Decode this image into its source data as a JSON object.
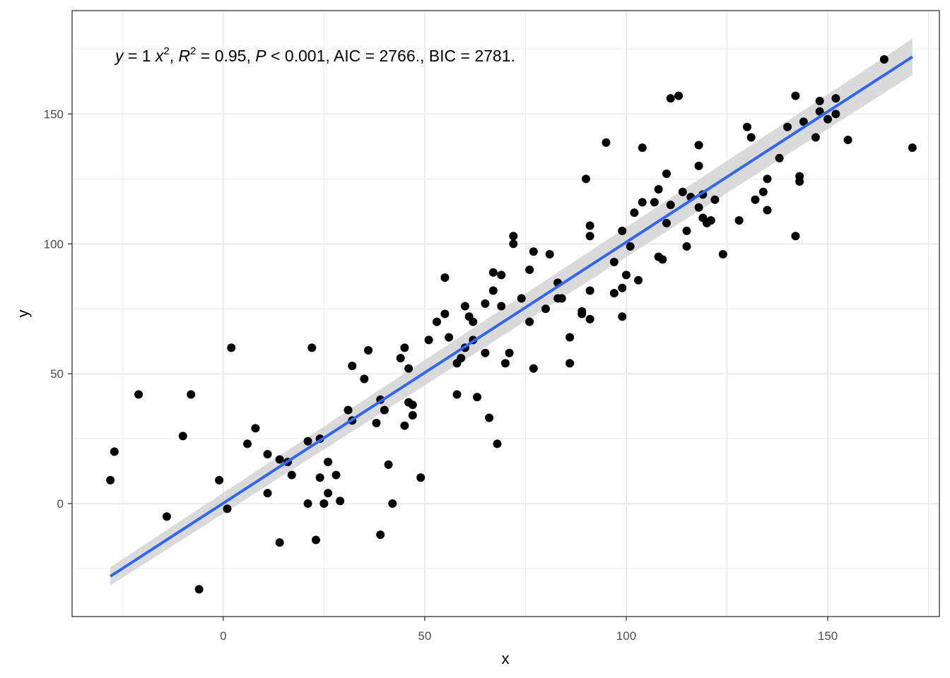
{
  "chart_data": {
    "type": "scatter",
    "xlabel": "x",
    "ylabel": "y",
    "xlim": [
      -37.5,
      177.7
    ],
    "ylim": [
      -43.5,
      189.8
    ],
    "x_ticks": [
      0,
      50,
      100,
      150
    ],
    "y_ticks": [
      0,
      50,
      100,
      150
    ],
    "x_minor": [
      -25,
      25,
      75,
      125,
      175
    ],
    "y_minor": [
      -25,
      25,
      75,
      125,
      175
    ],
    "grid": true,
    "colors": {
      "point": "#000000",
      "line": "#3366ff",
      "ribbon": "#d3d3d3",
      "grid": "#ebebeb",
      "tick_label": "#4d4d4d"
    },
    "annotation": {
      "y": "y",
      "eq_rest": " = 1 ",
      "x": "x",
      "exp": "2",
      "sep1": ", ",
      "R": "R",
      "r2_rest": " = 0.95, ",
      "P": "P",
      "p_rest": " < 0.001, AIC = 2766., BIC = 2781."
    },
    "fit": {
      "x": [
        -28,
        171
      ],
      "y": [
        -28,
        172
      ],
      "ci_lower": [
        -31.5,
        165
      ],
      "ci_upper": [
        -24.5,
        179
      ]
    },
    "points": [
      [
        -28,
        9
      ],
      [
        -27,
        20
      ],
      [
        -21,
        42
      ],
      [
        -14,
        -5
      ],
      [
        -10,
        26
      ],
      [
        -8,
        42
      ],
      [
        -6,
        -33
      ],
      [
        -1,
        9
      ],
      [
        1,
        -2
      ],
      [
        2,
        60
      ],
      [
        6,
        23
      ],
      [
        8,
        29
      ],
      [
        11,
        4
      ],
      [
        11,
        19
      ],
      [
        14,
        -15
      ],
      [
        14,
        17
      ],
      [
        16,
        16
      ],
      [
        17,
        11
      ],
      [
        21,
        24
      ],
      [
        21,
        0
      ],
      [
        22,
        60
      ],
      [
        23,
        -14
      ],
      [
        24,
        25
      ],
      [
        24,
        10
      ],
      [
        25,
        0
      ],
      [
        26,
        16
      ],
      [
        26,
        4
      ],
      [
        28,
        11
      ],
      [
        29,
        1
      ],
      [
        31,
        36
      ],
      [
        32,
        32
      ],
      [
        32,
        53
      ],
      [
        35,
        48
      ],
      [
        36,
        59
      ],
      [
        38,
        31
      ],
      [
        39,
        -12
      ],
      [
        39,
        40
      ],
      [
        40,
        36
      ],
      [
        41,
        15
      ],
      [
        42,
        0
      ],
      [
        44,
        56
      ],
      [
        45,
        60
      ],
      [
        45,
        30
      ],
      [
        46,
        52
      ],
      [
        46,
        39
      ],
      [
        47,
        38
      ],
      [
        47,
        34
      ],
      [
        49,
        10
      ],
      [
        51,
        63
      ],
      [
        53,
        70
      ],
      [
        55,
        87
      ],
      [
        55,
        73
      ],
      [
        56,
        64
      ],
      [
        58,
        42
      ],
      [
        58,
        54
      ],
      [
        59,
        56
      ],
      [
        60,
        76
      ],
      [
        60,
        60
      ],
      [
        61,
        72
      ],
      [
        62,
        63
      ],
      [
        62,
        70
      ],
      [
        63,
        41
      ],
      [
        65,
        77
      ],
      [
        65,
        58
      ],
      [
        66,
        33
      ],
      [
        67,
        89
      ],
      [
        67,
        82
      ],
      [
        68,
        23
      ],
      [
        69,
        88
      ],
      [
        69,
        76
      ],
      [
        70,
        54
      ],
      [
        71,
        58
      ],
      [
        72,
        103
      ],
      [
        72,
        100
      ],
      [
        74,
        79
      ],
      [
        76,
        90
      ],
      [
        76,
        70
      ],
      [
        77,
        97
      ],
      [
        77,
        52
      ],
      [
        80,
        75
      ],
      [
        81,
        96
      ],
      [
        83,
        85
      ],
      [
        83,
        79
      ],
      [
        84,
        79
      ],
      [
        86,
        54
      ],
      [
        86,
        64
      ],
      [
        89,
        74
      ],
      [
        89,
        73
      ],
      [
        90,
        125
      ],
      [
        91,
        107
      ],
      [
        91,
        103
      ],
      [
        91,
        82
      ],
      [
        91,
        71
      ],
      [
        95,
        139
      ],
      [
        97,
        93
      ],
      [
        97,
        81
      ],
      [
        99,
        83
      ],
      [
        99,
        105
      ],
      [
        99,
        72
      ],
      [
        100,
        88
      ],
      [
        101,
        99
      ],
      [
        102,
        112
      ],
      [
        103,
        86
      ],
      [
        104,
        137
      ],
      [
        104,
        116
      ],
      [
        107,
        116
      ],
      [
        108,
        121
      ],
      [
        108,
        95
      ],
      [
        109,
        94
      ],
      [
        110,
        127
      ],
      [
        110,
        108
      ],
      [
        111,
        115
      ],
      [
        111,
        156
      ],
      [
        113,
        157
      ],
      [
        114,
        120
      ],
      [
        115,
        105
      ],
      [
        115,
        99
      ],
      [
        116,
        118
      ],
      [
        118,
        114
      ],
      [
        118,
        138
      ],
      [
        118,
        130
      ],
      [
        119,
        110
      ],
      [
        119,
        119
      ],
      [
        120,
        108
      ],
      [
        121,
        109
      ],
      [
        122,
        117
      ],
      [
        124,
        96
      ],
      [
        128,
        109
      ],
      [
        130,
        145
      ],
      [
        131,
        141
      ],
      [
        132,
        117
      ],
      [
        134,
        120
      ],
      [
        135,
        125
      ],
      [
        135,
        113
      ],
      [
        138,
        133
      ],
      [
        140,
        145
      ],
      [
        142,
        157
      ],
      [
        142,
        103
      ],
      [
        143,
        124
      ],
      [
        143,
        126
      ],
      [
        144,
        147
      ],
      [
        147,
        141
      ],
      [
        148,
        155
      ],
      [
        148,
        151
      ],
      [
        150,
        148
      ],
      [
        152,
        156
      ],
      [
        152,
        150
      ],
      [
        155,
        140
      ],
      [
        164,
        171
      ],
      [
        171,
        137
      ]
    ]
  }
}
